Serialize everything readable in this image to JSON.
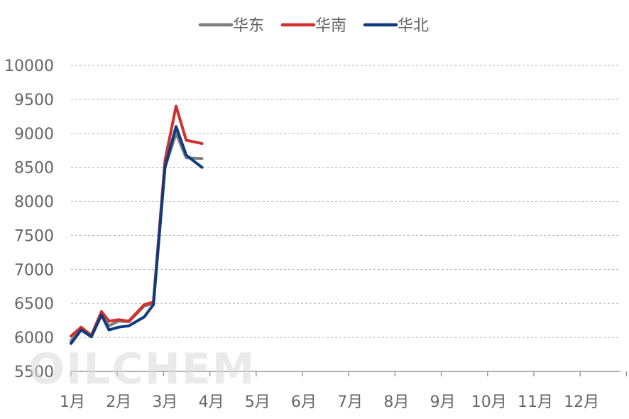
{
  "chart_data": {
    "type": "line",
    "title": "",
    "xlabel": "",
    "ylabel": "",
    "ylim": [
      5500,
      10000
    ],
    "yticks": [
      5500,
      6000,
      6500,
      7000,
      7500,
      8000,
      8500,
      9000,
      9500,
      10000
    ],
    "months": [
      "1月",
      "2月",
      "3月",
      "4月",
      "5月",
      "6月",
      "7月",
      "8月",
      "9月",
      "10月",
      "11月",
      "12月"
    ],
    "grid": true,
    "legend_position": "top",
    "x_unit_note": "x = month position, 1 = start of 1月",
    "series": [
      {
        "name": "华东",
        "color": "#7f7f7f",
        "x": [
          1.0,
          1.22,
          1.44,
          1.66,
          1.82,
          2.03,
          2.25,
          2.58,
          2.78,
          3.03,
          3.27,
          3.49,
          3.83
        ],
        "y": [
          5950,
          6120,
          6020,
          6350,
          6170,
          6240,
          6230,
          6460,
          6500,
          8500,
          9000,
          8640,
          8630
        ]
      },
      {
        "name": "华南",
        "color": "#d0312d",
        "x": [
          1.0,
          1.22,
          1.44,
          1.66,
          1.82,
          2.03,
          2.25,
          2.58,
          2.78,
          3.03,
          3.27,
          3.49,
          3.83
        ],
        "y": [
          6020,
          6150,
          6030,
          6380,
          6240,
          6260,
          6240,
          6480,
          6520,
          8600,
          9400,
          8900,
          8850
        ]
      },
      {
        "name": "华北",
        "color": "#0e3a7e",
        "x": [
          1.0,
          1.22,
          1.44,
          1.66,
          1.82,
          2.03,
          2.25,
          2.58,
          2.78,
          3.03,
          3.27,
          3.49,
          3.83
        ],
        "y": [
          5910,
          6110,
          6010,
          6330,
          6110,
          6150,
          6170,
          6300,
          6480,
          8500,
          9100,
          8680,
          8500
        ]
      }
    ]
  },
  "watermark": "OILCHEM"
}
